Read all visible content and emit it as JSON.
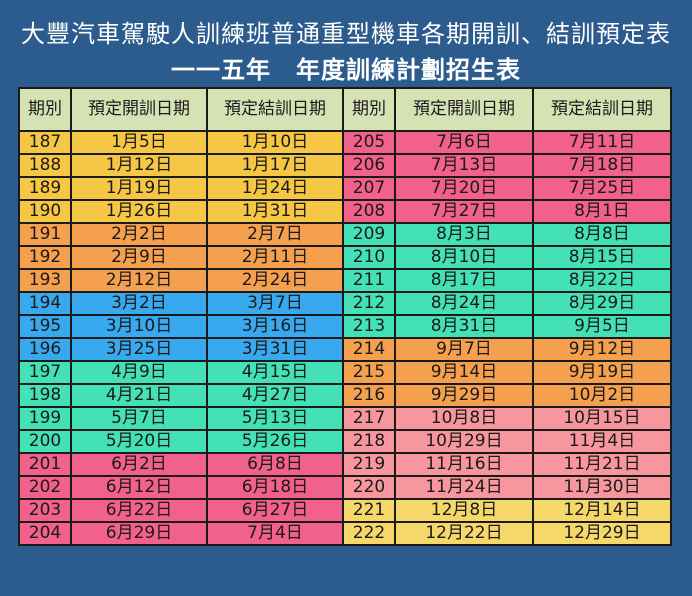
{
  "title_line1": "大豐汽車駕駛人訓練班普通重型機車各期開訓、結訓預定表",
  "title_line2": "一一五年　年度訓練計劃招生表",
  "headers": [
    "期別",
    "預定開訓日期",
    "預定結訓日期",
    "期別",
    "預定開訓日期",
    "預定結訓日期"
  ],
  "colors": {
    "yellow": "#f6c744",
    "orange": "#f5a04f",
    "blue": "#38a9ee",
    "green": "#44e0b6",
    "pink": "#f2608c",
    "light_pink": "#f7979d",
    "header": "#d7e2b4",
    "background": "#2c5b8e"
  },
  "rows": [
    {
      "l": [
        "187",
        "1月5日",
        "1月10日"
      ],
      "r": [
        "205",
        "7月6日",
        "7月11日"
      ]
    },
    {
      "l": [
        "188",
        "1月12日",
        "1月17日"
      ],
      "r": [
        "206",
        "7月13日",
        "7月18日"
      ]
    },
    {
      "l": [
        "189",
        "1月19日",
        "1月24日"
      ],
      "r": [
        "207",
        "7月20日",
        "7月25日"
      ]
    },
    {
      "l": [
        "190",
        "1月26日",
        "1月31日"
      ],
      "r": [
        "208",
        "7月27日",
        "8月1日"
      ]
    },
    {
      "l": [
        "191",
        "2月2日",
        "2月7日"
      ],
      "r": [
        "209",
        "8月3日",
        "8月8日"
      ]
    },
    {
      "l": [
        "192",
        "2月9日",
        "2月11日"
      ],
      "r": [
        "210",
        "8月10日",
        "8月15日"
      ]
    },
    {
      "l": [
        "193",
        "2月12日",
        "2月24日"
      ],
      "r": [
        "211",
        "8月17日",
        "8月22日"
      ]
    },
    {
      "l": [
        "194",
        "3月2日",
        "3月7日"
      ],
      "r": [
        "212",
        "8月24日",
        "8月29日"
      ]
    },
    {
      "l": [
        "195",
        "3月10日",
        "3月16日"
      ],
      "r": [
        "213",
        "8月31日",
        "9月5日"
      ]
    },
    {
      "l": [
        "196",
        "3月25日",
        "3月31日"
      ],
      "r": [
        "214",
        "9月7日",
        "9月12日"
      ]
    },
    {
      "l": [
        "197",
        "4月9日",
        "4月15日"
      ],
      "r": [
        "215",
        "9月14日",
        "9月19日"
      ]
    },
    {
      "l": [
        "198",
        "4月21日",
        "4月27日"
      ],
      "r": [
        "216",
        "9月29日",
        "10月2日"
      ]
    },
    {
      "l": [
        "199",
        "5月7日",
        "5月13日"
      ],
      "r": [
        "217",
        "10月8日",
        "10月15日"
      ]
    },
    {
      "l": [
        "200",
        "5月20日",
        "5月26日"
      ],
      "r": [
        "218",
        "10月29日",
        "11月4日"
      ]
    },
    {
      "l": [
        "201",
        "6月2日",
        "6月8日"
      ],
      "r": [
        "219",
        "11月16日",
        "11月21日"
      ]
    },
    {
      "l": [
        "202",
        "6月12日",
        "6月18日"
      ],
      "r": [
        "220",
        "11月24日",
        "11月30日"
      ]
    },
    {
      "l": [
        "203",
        "6月22日",
        "6月27日"
      ],
      "r": [
        "221",
        "12月8日",
        "12月14日"
      ]
    },
    {
      "l": [
        "204",
        "6月29日",
        "7月4日"
      ],
      "r": [
        "222",
        "12月22日",
        "12月29日"
      ]
    }
  ]
}
